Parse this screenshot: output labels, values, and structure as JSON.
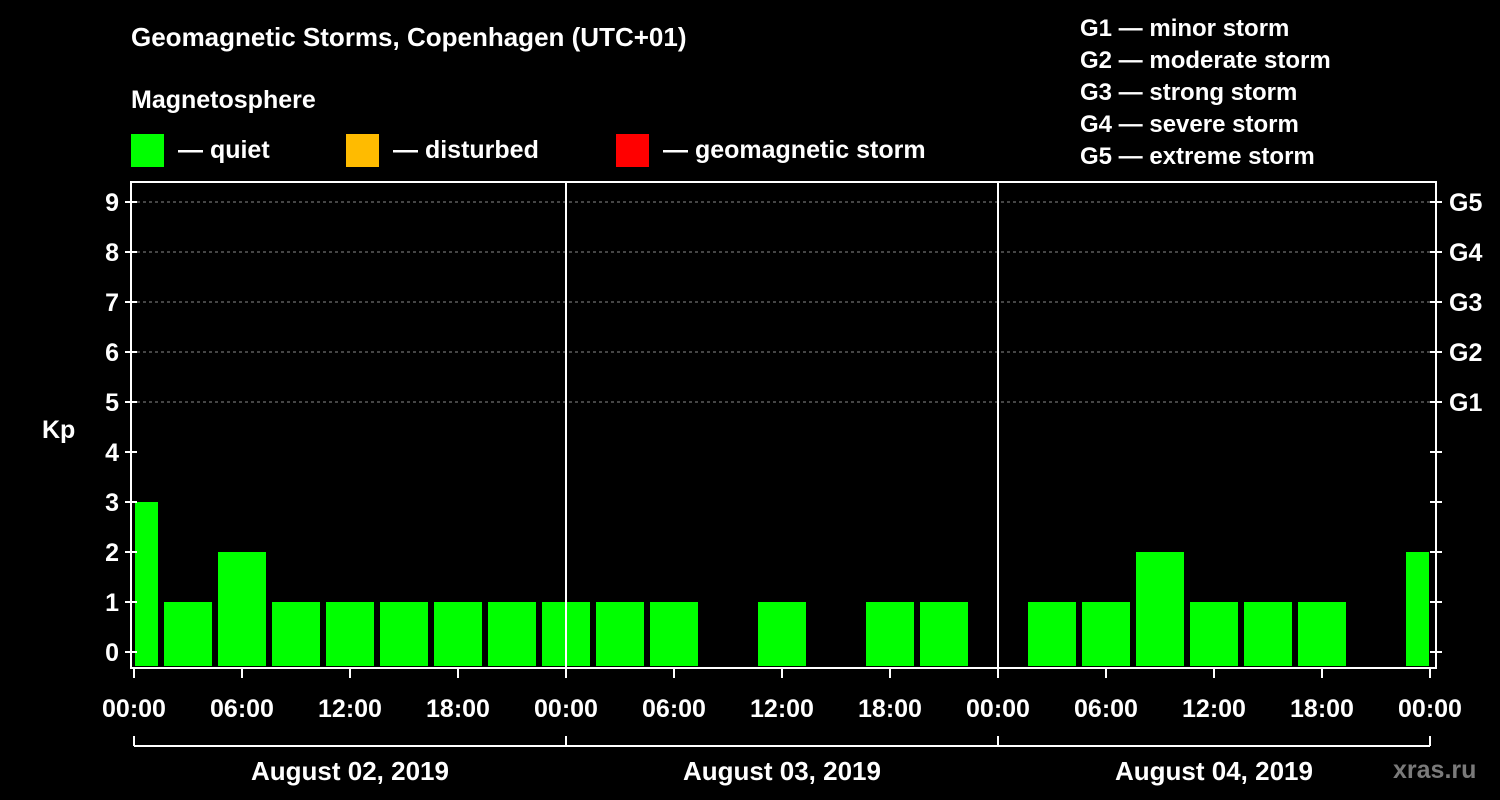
{
  "title": "Geomagnetic Storms, Copenhagen (UTC+01)",
  "subtitle": "Magnetosphere",
  "legend": [
    {
      "label": "— quiet",
      "color": "#00ff00"
    },
    {
      "label": "— disturbed",
      "color": "#ffbb00"
    },
    {
      "label": "— geomagnetic storm",
      "color": "#ff0000"
    }
  ],
  "gscale": [
    "G1 — minor storm",
    "G2 — moderate storm",
    "G3 — strong storm",
    "G4 — severe storm",
    "G5 — extreme storm"
  ],
  "watermark": "xras.ru",
  "chart_data": {
    "type": "bar",
    "ylabel": "Kp",
    "ylim": [
      0,
      9
    ],
    "yticks": [
      "0",
      "1",
      "2",
      "3",
      "4",
      "5",
      "6",
      "7",
      "8",
      "9"
    ],
    "right_ticks": [
      {
        "value": 5,
        "label": "G1"
      },
      {
        "value": 6,
        "label": "G2"
      },
      {
        "value": 7,
        "label": "G3"
      },
      {
        "value": 8,
        "label": "G4"
      },
      {
        "value": 9,
        "label": "G5"
      }
    ],
    "grid": "dashed at Kp 5-9",
    "xticks": [
      "00:00",
      "06:00",
      "12:00",
      "18:00",
      "00:00",
      "06:00",
      "12:00",
      "18:00",
      "00:00",
      "06:00",
      "12:00",
      "18:00",
      "00:00"
    ],
    "days": [
      "August 02, 2019",
      "August 03, 2019",
      "August 04, 2019"
    ],
    "interval_hours": 3,
    "values": [
      3,
      1,
      2,
      1,
      1,
      1,
      1,
      1,
      1,
      1,
      1,
      0,
      1,
      0,
      1,
      1,
      0,
      1,
      1,
      2,
      1,
      1,
      1,
      0,
      2
    ],
    "bar_color": "#00ff00"
  }
}
